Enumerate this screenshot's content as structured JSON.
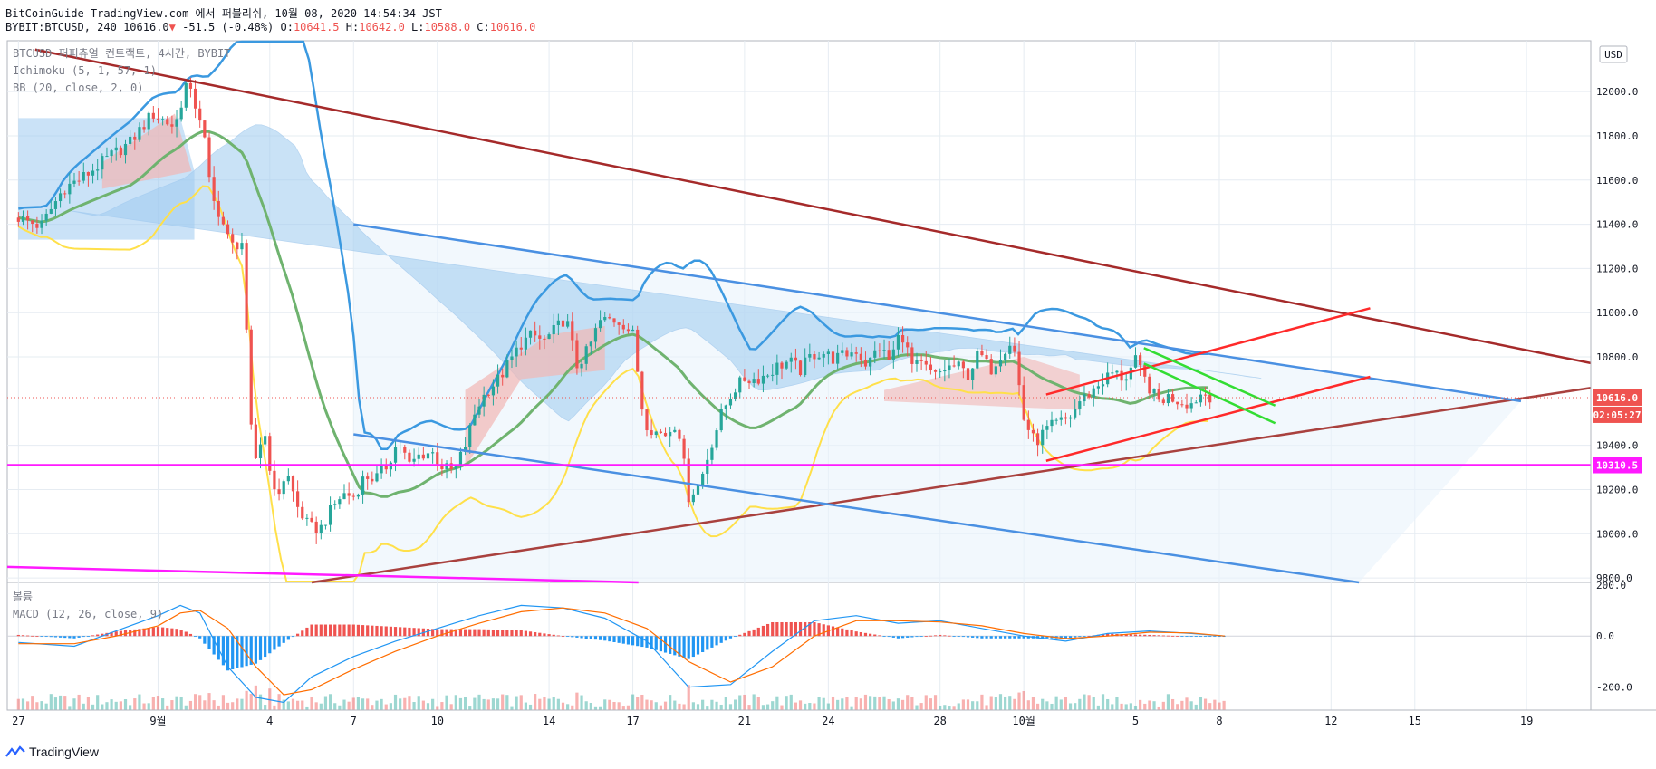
{
  "header": {
    "publish_line": "BitCoinGuide TradingView.com 에서 퍼블리쉬, 10월 08, 2020 14:54:34 JST",
    "ohlc": {
      "symbol": "BYBIT:BTCUSD, 240",
      "last": "10616.0",
      "arrow": "▼",
      "change": "-51.5 (-0.48%)",
      "o_label": "O:",
      "o": "10641.5",
      "h_label": "H:",
      "h": "10642.0",
      "l_label": "L:",
      "l": "10588.0",
      "c_label": "C:",
      "c": "10616.0"
    }
  },
  "legend": {
    "title": "BTCUSD 퍼피츄얼 컨트랙트, 4시간, BYBIT",
    "ichimoku": "Ichimoku (5, 1, 57, 1)",
    "bb": "BB (20, close, 2, 0)",
    "volume": "볼륨",
    "macd": "MACD (12, 26, close, 9)"
  },
  "footer": {
    "brand": "TradingView"
  },
  "chart_data": {
    "type": "line",
    "timeframe": "4h",
    "currency": "USD",
    "price_axis": {
      "ticks": [
        "12000.0",
        "11800.0",
        "11600.0",
        "11400.0",
        "11200.0",
        "11000.0",
        "10800.0",
        "10400.0",
        "10200.0",
        "10000.0",
        "9800.0"
      ],
      "partial_top_tick": "12000.0",
      "range": [
        9780,
        12230
      ]
    },
    "macd_axis": {
      "ticks": [
        "200.0",
        "0.0",
        "-200.0"
      ],
      "range": [
        -290,
        210
      ]
    },
    "x_axis": {
      "ticks": [
        "27",
        "9월",
        "4",
        "7",
        "10",
        "14",
        "17",
        "21",
        "24",
        "28",
        "10월",
        "5",
        "8",
        "12",
        "15",
        "19"
      ],
      "tick_day_index": [
        0,
        5,
        9,
        12,
        15,
        19,
        22,
        26,
        29,
        33,
        36,
        40,
        43,
        47,
        50,
        54
      ],
      "range_days": [
        -0.4,
        56.3
      ]
    },
    "badges": {
      "currency": "USD",
      "last_price": "10616.0",
      "countdown": "02:05:27",
      "level": "10310.5",
      "level_value": 10310.5,
      "last_value": 10616.0
    },
    "price_path": {
      "day": [
        0,
        0.8,
        1.6,
        2.4,
        3.2,
        4.0,
        4.8,
        5.6,
        6.0,
        6.3,
        6.6,
        6.9,
        7.2,
        7.6,
        8.0,
        8.4,
        8.8,
        9.2,
        9.6,
        10.0,
        10.4,
        10.8,
        11.2,
        11.6,
        12.0,
        12.4,
        12.8,
        13.2,
        13.6,
        14.0,
        14.4,
        14.8,
        15.2,
        15.6,
        16.0,
        16.4,
        16.8,
        17.2,
        17.6,
        18.0,
        18.4,
        18.8,
        19.2,
        19.6,
        20.0,
        20.4,
        20.8,
        21.2,
        21.6,
        22.0,
        22.4,
        22.8,
        23.2,
        23.6,
        24.0,
        24.4,
        24.8,
        25.2,
        25.6,
        26.0,
        26.4,
        26.8,
        27.2,
        27.6,
        28.0,
        28.4,
        28.8,
        29.2,
        29.6,
        30.0,
        30.4,
        30.8,
        31.2,
        31.6,
        32.0,
        32.4,
        32.8,
        33.2,
        33.6,
        34.0,
        34.4,
        34.8,
        35.2,
        35.6,
        36.0,
        36.4,
        36.8,
        37.2,
        37.6,
        38.0,
        38.4,
        38.8,
        39.2,
        39.6,
        40.0,
        40.4,
        40.8,
        41.2,
        41.6,
        42.0,
        42.4,
        42.8,
        43.2
      ],
      "close": [
        11430,
        11390,
        11560,
        11620,
        11700,
        11770,
        11900,
        11840,
        12030,
        11950,
        11850,
        11520,
        11450,
        11300,
        11320,
        10300,
        10470,
        10150,
        10280,
        10120,
        10030,
        10020,
        10110,
        10180,
        10170,
        10260,
        10250,
        10310,
        10420,
        10310,
        10360,
        10370,
        10300,
        10280,
        10400,
        10570,
        10650,
        10700,
        10780,
        10860,
        10900,
        10870,
        10920,
        10980,
        10760,
        10830,
        10960,
        10970,
        10960,
        10900,
        10510,
        10460,
        10450,
        10510,
        10170,
        10230,
        10400,
        10550,
        10650,
        10700,
        10700,
        10720,
        10760,
        10780,
        10740,
        10810,
        10820,
        10790,
        10810,
        10830,
        10760,
        10850,
        10780,
        10920,
        10760,
        10760,
        10710,
        10750,
        10760,
        10720,
        10820,
        10740,
        10820,
        10880,
        10520,
        10410,
        10470,
        10500,
        10520,
        10600,
        10640,
        10690,
        10730,
        10700,
        10780,
        10680,
        10600,
        10620,
        10600,
        10590,
        10640,
        10616
      ]
    },
    "candle_range_days": [
      0,
      43.2
    ],
    "macd_path": {
      "day": [
        0,
        2,
        3.5,
        5,
        5.8,
        6.5,
        7.5,
        8.5,
        9.5,
        10.5,
        12,
        13.5,
        15,
        16.5,
        18,
        19.5,
        21,
        22.5,
        24,
        25.5,
        27,
        28.5,
        30,
        31.5,
        33,
        34.5,
        36,
        37.5,
        39,
        40.5,
        42,
        43.2
      ],
      "macd": [
        -25,
        -40,
        20,
        80,
        120,
        90,
        -120,
        -240,
        -260,
        -160,
        -80,
        -20,
        30,
        80,
        120,
        110,
        70,
        -20,
        -200,
        -190,
        -60,
        60,
        80,
        50,
        60,
        30,
        0,
        -20,
        10,
        20,
        10,
        0
      ],
      "signal": [
        -30,
        -30,
        0,
        40,
        90,
        100,
        30,
        -120,
        -230,
        -210,
        -130,
        -60,
        0,
        50,
        95,
        110,
        90,
        30,
        -100,
        -180,
        -120,
        0,
        60,
        60,
        55,
        40,
        10,
        -10,
        0,
        15,
        12,
        0
      ]
    },
    "trendlines": [
      {
        "name": "long-term resistance",
        "color": "#a52a2a",
        "from": [
          0.6,
          12190
        ],
        "to": [
          56.3,
          10772
        ]
      },
      {
        "name": "long-term support",
        "color": "#a9413e",
        "from": [
          10.5,
          9780
        ],
        "to": [
          56.3,
          10660
        ]
      },
      {
        "name": "channel top",
        "color": "#4a90e2",
        "from": [
          12,
          11400
        ],
        "to": [
          53.8,
          10600
        ]
      },
      {
        "name": "channel bottom",
        "color": "#4a90e2",
        "from": [
          12,
          10450
        ],
        "to": [
          48.0,
          9780
        ]
      },
      {
        "name": "red channel upper",
        "color": "#ff2a2a",
        "from": [
          36.8,
          10630
        ],
        "to": [
          48.4,
          11020
        ]
      },
      {
        "name": "red channel lower",
        "color": "#ff2a2a",
        "from": [
          36.8,
          10330
        ],
        "to": [
          48.4,
          10710
        ]
      },
      {
        "name": "green flag upper",
        "color": "#33dd33",
        "from": [
          40.3,
          10840
        ],
        "to": [
          45.0,
          10580
        ]
      },
      {
        "name": "green flag lower",
        "color": "#33dd33",
        "from": [
          40.3,
          10770
        ],
        "to": [
          45.0,
          10500
        ]
      },
      {
        "name": "horizontal level",
        "color": "#ff1aff",
        "from": [
          -0.4,
          10310.5
        ],
        "to": [
          56.3,
          10310.5
        ]
      },
      {
        "name": "lower magenta",
        "color": "#ff1aff",
        "from": [
          -0.4,
          9850
        ],
        "to": [
          22.2,
          9780
        ]
      }
    ]
  },
  "colors": {
    "up": "#26a69a",
    "down": "#ef5350",
    "bb_basis": "#6fb36f",
    "bb_upper": "#3b99e0",
    "bb_lower": "#ffe04a",
    "kumo": "#9ecbf0",
    "kumo_red": "#f2b6b4",
    "grid": "#e6ecf2",
    "axis": "#787b86"
  }
}
